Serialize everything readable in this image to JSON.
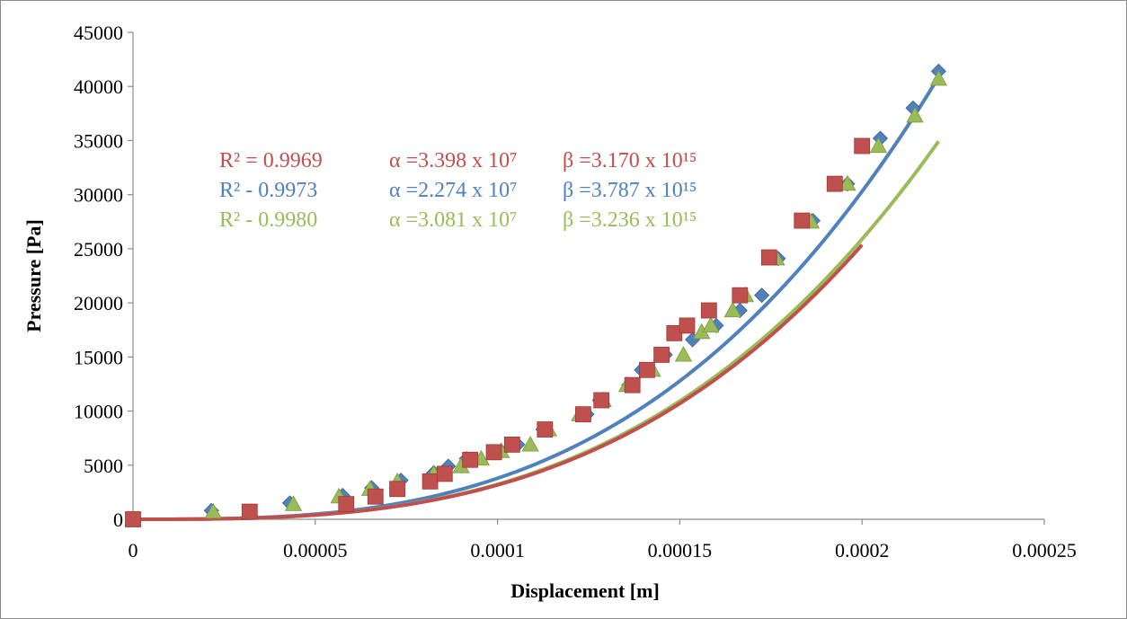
{
  "chart_data": {
    "type": "scatter",
    "title": "",
    "xlabel": "Displacement [m]",
    "ylabel": "Pressure [Pa]",
    "xlim": [
      0,
      0.00025
    ],
    "ylim": [
      0,
      45000
    ],
    "x_ticks": [
      "0",
      "0.00005",
      "0.0001",
      "0.00015",
      "0.0002",
      "0.00025"
    ],
    "y_ticks": [
      "0",
      "5000",
      "10000",
      "15000",
      "20000",
      "25000",
      "30000",
      "35000",
      "40000",
      "45000"
    ],
    "grid": false,
    "legend": "none",
    "series": [
      {
        "marker": "diamond",
        "color": "#4f81bd",
        "fit": {
          "alpha": 22740000,
          "beta": 3787000000000000.0
        },
        "points": [
          [
            0,
            0
          ],
          [
            2.15e-05,
            800
          ],
          [
            4.3e-05,
            1500
          ],
          [
            5.75e-05,
            2200
          ],
          [
            6.55e-05,
            2900
          ],
          [
            7.35e-05,
            3600
          ],
          [
            8.25e-05,
            4300
          ],
          [
            8.65e-05,
            4900
          ],
          [
            9.15e-05,
            5600
          ],
          [
            0.000101,
            6300
          ],
          [
            0.0001055,
            6900
          ],
          [
            0.0001125,
            8300
          ],
          [
            0.0001245,
            9700
          ],
          [
            0.000128,
            11000
          ],
          [
            0.000136,
            12400
          ],
          [
            0.0001395,
            13800
          ],
          [
            0.000146,
            15200
          ],
          [
            0.0001535,
            16600
          ],
          [
            0.00016,
            17900
          ],
          [
            0.0001665,
            19300
          ],
          [
            0.0001725,
            20700
          ],
          [
            0.000177,
            24100
          ],
          [
            0.0001865,
            27600
          ],
          [
            0.000196,
            31000
          ],
          [
            0.000205,
            35200
          ],
          [
            0.000214,
            38000
          ],
          [
            0.000221,
            41400
          ]
        ]
      },
      {
        "marker": "square",
        "color": "#c0504d",
        "fit": {
          "alpha": 33980000,
          "beta": 3170000000000000.0
        },
        "points": [
          [
            0,
            0
          ],
          [
            3.2e-05,
            700
          ],
          [
            5.85e-05,
            1400
          ],
          [
            6.65e-05,
            2100
          ],
          [
            7.25e-05,
            2800
          ],
          [
            8.15e-05,
            3500
          ],
          [
            8.55e-05,
            4200
          ],
          [
            9.25e-05,
            5500
          ],
          [
            9.9e-05,
            6200
          ],
          [
            0.000104,
            6900
          ],
          [
            0.000113,
            8300
          ],
          [
            0.0001235,
            9700
          ],
          [
            0.0001285,
            11000
          ],
          [
            0.000137,
            12400
          ],
          [
            0.000141,
            13800
          ],
          [
            0.000145,
            15200
          ],
          [
            0.0001485,
            17200
          ],
          [
            0.000152,
            17900
          ],
          [
            0.000158,
            19300
          ],
          [
            0.0001665,
            20700
          ],
          [
            0.0001745,
            24200
          ],
          [
            0.0001835,
            27600
          ],
          [
            0.0001925,
            31000
          ],
          [
            0.0002,
            34500
          ]
        ]
      },
      {
        "marker": "triangle",
        "color": "#9bbb59",
        "fit": {
          "alpha": 30810000,
          "beta": 3236000000000000.0
        },
        "points": [
          [
            0,
            0
          ],
          [
            2.2e-05,
            700
          ],
          [
            4.4e-05,
            1400
          ],
          [
            5.65e-05,
            2100
          ],
          [
            6.5e-05,
            2800
          ],
          [
            7.25e-05,
            3500
          ],
          [
            8.25e-05,
            4200
          ],
          [
            9e-05,
            4900
          ],
          [
            9.55e-05,
            5600
          ],
          [
            0.000101,
            6300
          ],
          [
            0.000109,
            6900
          ],
          [
            0.000114,
            8300
          ],
          [
            0.0001225,
            9700
          ],
          [
            0.000129,
            11000
          ],
          [
            0.0001355,
            12400
          ],
          [
            0.0001425,
            13800
          ],
          [
            0.000151,
            15200
          ],
          [
            0.000156,
            17300
          ],
          [
            0.0001585,
            17900
          ],
          [
            0.0001645,
            19300
          ],
          [
            0.000168,
            20700
          ],
          [
            0.0001765,
            24100
          ],
          [
            0.000186,
            27500
          ],
          [
            0.000196,
            31000
          ],
          [
            0.0002045,
            34500
          ],
          [
            0.0002145,
            37300
          ],
          [
            0.000221,
            40700
          ]
        ]
      }
    ],
    "annotations": [
      {
        "color": "#c0504d",
        "r2": "R² = 0.9969",
        "alpha": "α =3.398 x 10⁷",
        "beta": "β =3.170 x 10¹⁵"
      },
      {
        "color": "#4f81bd",
        "r2": "R² - 0.9973",
        "alpha": "α =2.274 x 10⁷",
        "beta": "β =3.787 x 10¹⁵"
      },
      {
        "color": "#9bbb59",
        "r2": "R² - 0.9980",
        "alpha": "α =3.081 x 10⁷",
        "beta": "β =3.236 x 10¹⁵"
      }
    ]
  }
}
